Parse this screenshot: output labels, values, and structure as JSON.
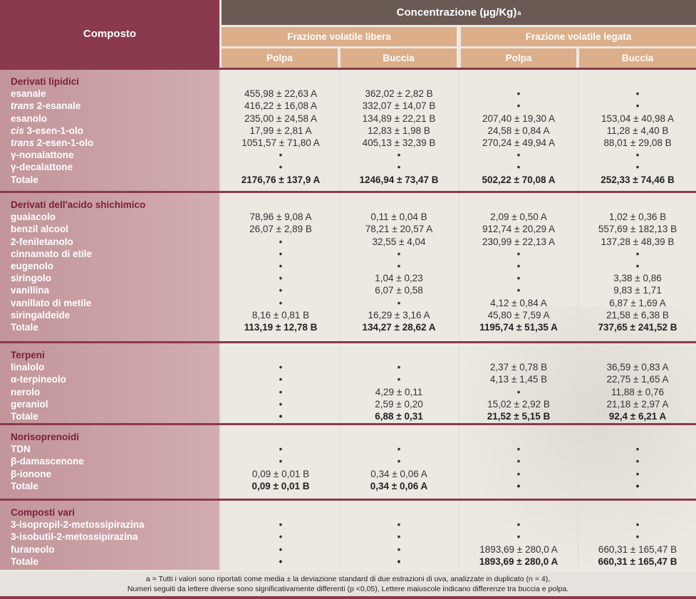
{
  "header": {
    "compound": "Composto",
    "concentration": "Concentrazione  (µg/Kg)",
    "concentration_sup": "a",
    "group_free": "Frazione volatile libera",
    "group_bound": "Frazione volatile legata",
    "sub": [
      "Polpa",
      "Buccia",
      "Polpa",
      "Buccia"
    ]
  },
  "sections": [
    {
      "title": "Derivati lipidici",
      "rows": [
        {
          "prefix": "",
          "name": "esanale",
          "v": [
            "455,98 ± 22,63 A",
            "362,02 ± 2,82 B",
            "•",
            "•"
          ]
        },
        {
          "prefix": "trans",
          "name": " 2-esanale",
          "v": [
            "416,22 ± 16,08 A",
            "332,07 ± 14,07 B",
            "•",
            "•"
          ]
        },
        {
          "prefix": "",
          "name": "esanolo",
          "v": [
            "235,00 ± 24,58 A",
            "134,89 ± 22,21 B",
            "207,40 ± 19,30 A",
            "153,04 ± 40,98 A"
          ]
        },
        {
          "prefix": "cis",
          "name": " 3-esen-1-olo",
          "v": [
            "17,99 ± 2,81 A",
            "12,83 ± 1,98 B",
            "24,58 ± 0,84 A",
            "11,28 ± 4,40 B"
          ]
        },
        {
          "prefix": "trans",
          "name": " 2-esen-1-olo",
          "v": [
            "1051,57 ± 71,80 A",
            "405,13 ± 32,39 B",
            "270,24 ± 49,94 A",
            "88,01 ± 29,08 B"
          ]
        },
        {
          "prefix": "",
          "name": "γ-nonalattone",
          "v": [
            "•",
            "•",
            "•",
            "•"
          ]
        },
        {
          "prefix": "",
          "name": "γ-decalattone",
          "v": [
            "•",
            "•",
            "•",
            "•"
          ]
        },
        {
          "prefix": "",
          "name": "Totale",
          "total": true,
          "v": [
            "2176,76 ± 137,9 A",
            "1246,94 ± 73,47 B",
            "502,22 ± 70,08 A",
            "252,33 ± 74,46 B"
          ]
        }
      ]
    },
    {
      "title": "Derivati dell'acido shichimico",
      "rows": [
        {
          "prefix": "",
          "name": "guaiacolo",
          "v": [
            "78,96 ± 9,08 A",
            "0,11 ± 0,04 B",
            "2,09 ± 0,50 A",
            "1,02 ± 0,36 B"
          ]
        },
        {
          "prefix": "",
          "name": "benzil alcool",
          "v": [
            "26,07 ± 2,89 B",
            "78,21 ± 20,57 A",
            "912,74 ± 20,29 A",
            "557,69 ± 182,13 B"
          ]
        },
        {
          "prefix": "",
          "name": "2-feniletanolo",
          "v": [
            "•",
            "32,55 ± 4,04",
            "230,99 ± 22,13 A",
            "137,28 ± 48,39 B"
          ]
        },
        {
          "prefix": "",
          "name": "cinnamato di etile",
          "v": [
            "•",
            "•",
            "•",
            "•"
          ]
        },
        {
          "prefix": "",
          "name": "eugenolo",
          "v": [
            "•",
            "•",
            "•",
            "•"
          ]
        },
        {
          "prefix": "",
          "name": "siringolo",
          "v": [
            "•",
            "1,04 ± 0,23",
            "•",
            "3,38 ± 0,86"
          ]
        },
        {
          "prefix": "",
          "name": "vanillina",
          "v": [
            "•",
            "6,07 ± 0,58",
            "•",
            "9,83 ± 1,71"
          ]
        },
        {
          "prefix": "",
          "name": "vanillato di metile",
          "v": [
            "•",
            "•",
            "4,12 ± 0,84 A",
            "6,87 ± 1,69 A"
          ]
        },
        {
          "prefix": "",
          "name": "siringaldeide",
          "v": [
            "8,16 ± 0,81 B",
            "16,29 ± 3,16 A",
            "45,80 ± 7,59 A",
            "21,58 ± 6,38 B"
          ]
        },
        {
          "prefix": "",
          "name": "Totale",
          "total": true,
          "v": [
            "113,19 ± 12,78 B",
            "134,27 ± 28,62 A",
            "1195,74 ± 51,35 A",
            "737,65 ± 241,52 B"
          ]
        }
      ]
    },
    {
      "title": "Terpeni",
      "rows": [
        {
          "prefix": "",
          "name": "linalolo",
          "v": [
            "•",
            "•",
            "2,37 ± 0,78 B",
            "36,59 ± 0,83 A"
          ]
        },
        {
          "prefix": "",
          "name": "α-terpineolo",
          "v": [
            "•",
            "•",
            "4,13 ± 1,45 B",
            "22,75 ± 1,65 A"
          ]
        },
        {
          "prefix": "",
          "name": "nerolo",
          "v": [
            "•",
            "4,29 ± 0,11",
            "•",
            "11,88 ± 0,76"
          ]
        },
        {
          "prefix": "",
          "name": "geraniol",
          "v": [
            "•",
            "2,59 ± 0,20",
            "15,02 ± 2,92 B",
            "21,18 ± 2,97 A"
          ]
        },
        {
          "prefix": "",
          "name": "Totale",
          "total": true,
          "v": [
            "•",
            "6,88 ± 0,31",
            "21,52 ± 5,15 B",
            "92,4 ± 6,21 A"
          ]
        }
      ]
    },
    {
      "title": "Norisoprenoidi",
      "rows": [
        {
          "prefix": "",
          "name": "TDN",
          "v": [
            "•",
            "•",
            "•",
            "•"
          ]
        },
        {
          "prefix": "",
          "name": "β-damascenone",
          "v": [
            "•",
            "•",
            "•",
            "•"
          ]
        },
        {
          "prefix": "",
          "name": "β-ionone",
          "v": [
            "0,09 ± 0,01 B",
            "0,34 ± 0,06 A",
            "•",
            "•"
          ]
        },
        {
          "prefix": "",
          "name": "Totale",
          "total": true,
          "v": [
            "0,09 ± 0,01 B",
            "0,34 ± 0,06 A",
            "•",
            "•"
          ]
        }
      ]
    },
    {
      "title": "Composti vari",
      "rows": [
        {
          "prefix": "",
          "name": "3-isopropil-2-metossipirazina",
          "v": [
            "•",
            "•",
            "•",
            "•"
          ]
        },
        {
          "prefix": "",
          "name": "3-isobutil-2-metossipirazina",
          "v": [
            "•",
            "•",
            "•",
            "•"
          ]
        },
        {
          "prefix": "",
          "name": "furaneolo",
          "v": [
            "•",
            "•",
            "1893,69 ± 280,0 A",
            "660,31 ± 165,47 B"
          ]
        },
        {
          "prefix": "",
          "name": "Totale",
          "total": true,
          "v": [
            "•",
            "•",
            "1893,69 ± 280,0 A",
            "660,31 ± 165,47 B"
          ]
        }
      ]
    }
  ],
  "footnote": {
    "line1": "a = Tutti i valori sono riportati come media ± la deviazione standard di due estrazioni di uva, analizzate in duplicato (n = 4),",
    "line2": "Numeri seguiti da lettere diverse sono significativamente differenti (p <0,05), Lettere maiuscole indicano differenze tra buccia e polpa."
  }
}
